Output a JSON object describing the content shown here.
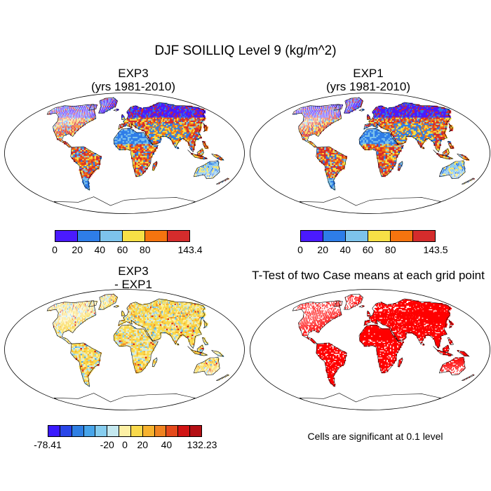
{
  "title": "DJF SOILLIQ Level 9 (kg/m^2)",
  "panels": {
    "tl": {
      "title_line1": "EXP3",
      "title_line2": "(yrs 1981-2010)"
    },
    "tr": {
      "title_line1": "EXP1",
      "title_line2": "(yrs 1981-2010)"
    },
    "bl": {
      "title_line1": "EXP3",
      "title_line2": "- EXP1"
    },
    "br": {
      "title": "T-Test of two Case means at each grid point",
      "note": "Cells are significant at 0.1 level"
    }
  },
  "colorbars": {
    "exp3": {
      "colors": [
        "#4a1aff",
        "#2e7de8",
        "#7dc3eb",
        "#f7e046",
        "#f5740f",
        "#d42c2c"
      ],
      "labels": [
        "0",
        "20",
        "40",
        "60",
        "80",
        "143.4"
      ]
    },
    "exp1": {
      "colors": [
        "#4a1aff",
        "#2e7de8",
        "#7dc3eb",
        "#f7e046",
        "#f5740f",
        "#d42c2c"
      ],
      "labels": [
        "0",
        "20",
        "40",
        "60",
        "80",
        "143.5"
      ]
    },
    "diff": {
      "colors": [
        "#3a1aff",
        "#2a46e8",
        "#2f7fe3",
        "#48a5ea",
        "#86cdef",
        "#c4e8ef",
        "#fdf0a5",
        "#f9d94c",
        "#f7b22e",
        "#f08321",
        "#e54a1c",
        "#d11414",
        "#b40f14"
      ],
      "labels": [
        "-78.41",
        "-20",
        "0",
        "20",
        "40",
        "132.23"
      ]
    }
  },
  "legend_colors": {
    "significant": "#ff0000",
    "land_outline": "#000000"
  }
}
